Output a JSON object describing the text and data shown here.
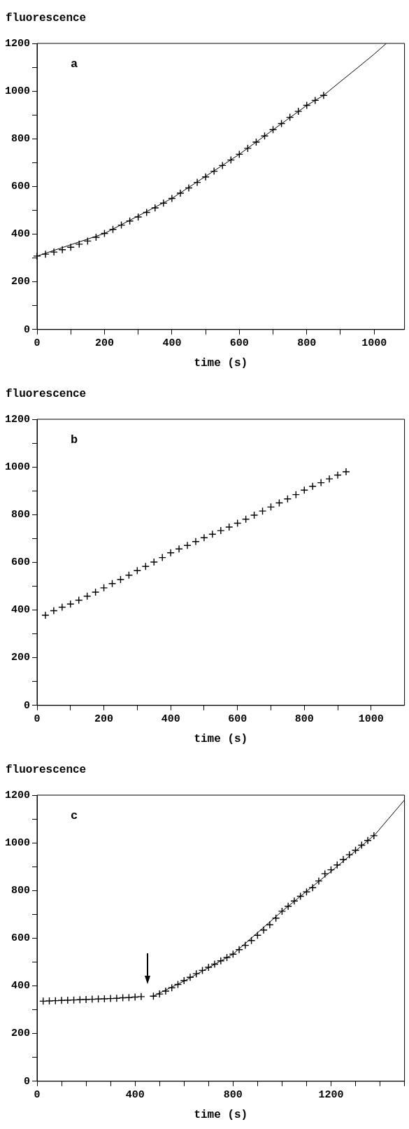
{
  "chart_data": [
    {
      "type": "scatter",
      "ylabel": "fluorescence",
      "xlabel": "time (s)",
      "annotations": [
        "a"
      ],
      "grid": false,
      "legend": false,
      "xlim": [
        0,
        1090
      ],
      "xticks": [
        0,
        {
          "value": 100,
          "label": null
        },
        200,
        {
          "value": 300,
          "label": null
        },
        400,
        {
          "value": 500,
          "label": null
        },
        600,
        {
          "value": 700,
          "label": null
        },
        800,
        {
          "value": 900,
          "label": null
        },
        1000
      ],
      "ylim": [
        0,
        1200
      ],
      "yticks": [
        0,
        {
          "value": 100,
          "label": null
        },
        200,
        {
          "value": 300,
          "label": null
        },
        400,
        {
          "value": 500,
          "label": null
        },
        600,
        {
          "value": 700,
          "label": null
        },
        800,
        {
          "value": 900,
          "label": null
        },
        1000,
        {
          "value": 1100,
          "label": null
        },
        1200
      ],
      "series": [
        {
          "marker": "cross",
          "color": "#000000",
          "x": [
            0,
            25,
            50,
            75,
            100,
            125,
            150,
            175,
            200,
            225,
            250,
            275,
            300,
            325,
            350,
            375,
            400,
            425,
            450,
            475,
            500,
            525,
            550,
            575,
            600,
            625,
            650,
            675,
            700,
            725,
            750,
            775,
            800,
            825,
            850
          ],
          "values": [
            308,
            316,
            325,
            335,
            345,
            358,
            371,
            387,
            403,
            420,
            438,
            455,
            472,
            491,
            510,
            530,
            550,
            572,
            594,
            617,
            640,
            664,
            688,
            711,
            735,
            760,
            786,
            812,
            838,
            864,
            890,
            915,
            940,
            961,
            982
          ]
        },
        {
          "type": "line",
          "marker": "none",
          "color": "#000000",
          "x": [
            0,
            200,
            400,
            600,
            800,
            850,
            900,
            950,
            1000,
            1036
          ],
          "values": [
            308,
            403,
            550,
            735,
            940,
            982,
            1040,
            1097,
            1155,
            1200
          ]
        }
      ]
    },
    {
      "type": "scatter",
      "ylabel": "fluorescence",
      "xlabel": "time (s)",
      "annotations": [
        "b"
      ],
      "marker": "cross",
      "grid": false,
      "legend": false,
      "xlim": [
        0,
        1100
      ],
      "xticks": [
        0,
        {
          "value": 100,
          "label": null
        },
        200,
        {
          "value": 300,
          "label": null
        },
        400,
        {
          "value": 500,
          "label": null
        },
        600,
        {
          "value": 700,
          "label": null
        },
        800,
        {
          "value": 900,
          "label": null
        },
        1000
      ],
      "ylim": [
        0,
        1200
      ],
      "yticks": [
        0,
        {
          "value": 100,
          "label": null
        },
        200,
        {
          "value": 300,
          "label": null
        },
        400,
        {
          "value": 500,
          "label": null
        },
        600,
        {
          "value": 700,
          "label": null
        },
        800,
        {
          "value": 900,
          "label": null
        },
        1000,
        {
          "value": 1100,
          "label": null
        },
        1200
      ],
      "series": [
        {
          "color": "#000000",
          "x": [
            25,
            50,
            75,
            100,
            125,
            150,
            175,
            200,
            225,
            250,
            275,
            300,
            325,
            350,
            375,
            400,
            425,
            450,
            475,
            500,
            525,
            550,
            575,
            600,
            625,
            650,
            675,
            700,
            725,
            750,
            775,
            800,
            825,
            850,
            875,
            900,
            925
          ],
          "values": [
            378,
            397,
            412,
            425,
            441,
            458,
            475,
            493,
            511,
            528,
            546,
            565,
            583,
            601,
            620,
            640,
            656,
            671,
            687,
            703,
            718,
            733,
            748,
            764,
            781,
            798,
            815,
            832,
            849,
            866,
            884,
            903,
            919,
            934,
            950,
            966,
            980
          ]
        }
      ]
    },
    {
      "type": "scatter",
      "ylabel": "fluorescence",
      "xlabel": "time (s)",
      "annotations": [
        "c"
      ],
      "grid": false,
      "legend": false,
      "xlim": [
        0,
        1500
      ],
      "xticks": [
        0,
        {
          "value": 100,
          "label": null
        },
        {
          "value": 200,
          "label": null
        },
        {
          "value": 300,
          "label": null
        },
        400,
        {
          "value": 500,
          "label": null
        },
        {
          "value": 600,
          "label": null
        },
        {
          "value": 700,
          "label": null
        },
        800,
        {
          "value": 900,
          "label": null
        },
        {
          "value": 1000,
          "label": null
        },
        {
          "value": 1100,
          "label": null
        },
        1200,
        {
          "value": 1300,
          "label": null
        },
        {
          "value": 1400,
          "label": null
        },
        {
          "value": 1500,
          "label": null
        }
      ],
      "ylim": [
        0,
        1200
      ],
      "yticks": [
        0,
        {
          "value": 100,
          "label": null
        },
        200,
        {
          "value": 300,
          "label": null
        },
        400,
        {
          "value": 500,
          "label": null
        },
        600,
        {
          "value": 700,
          "label": null
        },
        800,
        {
          "value": 900,
          "label": null
        },
        1000,
        {
          "value": 1100,
          "label": null
        },
        1200
      ],
      "series": [
        {
          "marker": "cross",
          "color": "#000000",
          "x": [
            25,
            50,
            75,
            100,
            125,
            150,
            175,
            200,
            225,
            250,
            275,
            300,
            325,
            350,
            375,
            400,
            425
          ],
          "values": [
            336,
            337,
            338,
            339,
            340,
            341,
            342,
            343,
            344,
            345,
            346,
            347,
            348,
            350,
            351,
            353,
            355
          ]
        },
        {
          "marker": "cross",
          "color": "#000000",
          "x": [
            475,
            500,
            525,
            550,
            575,
            600,
            625,
            650,
            675,
            700,
            725,
            750,
            775,
            800,
            825,
            850,
            875,
            900,
            925,
            950,
            975,
            1000,
            1025,
            1050,
            1075,
            1100,
            1125,
            1150,
            1175,
            1200,
            1225,
            1250,
            1275,
            1300,
            1325,
            1350,
            1375
          ],
          "values": [
            357,
            366,
            378,
            392,
            406,
            422,
            436,
            451,
            465,
            478,
            491,
            505,
            519,
            533,
            552,
            570,
            590,
            612,
            634,
            656,
            684,
            713,
            734,
            756,
            776,
            794,
            812,
            840,
            870,
            887,
            907,
            930,
            950,
            969,
            990,
            1010,
            1030
          ]
        },
        {
          "type": "line",
          "marker": "none",
          "color": "#000000",
          "x": [
            470,
            600,
            800,
            1000,
            1200,
            1380,
            1500
          ],
          "values": [
            355,
            420,
            533,
            713,
            880,
            1035,
            1180
          ]
        }
      ]
    }
  ]
}
